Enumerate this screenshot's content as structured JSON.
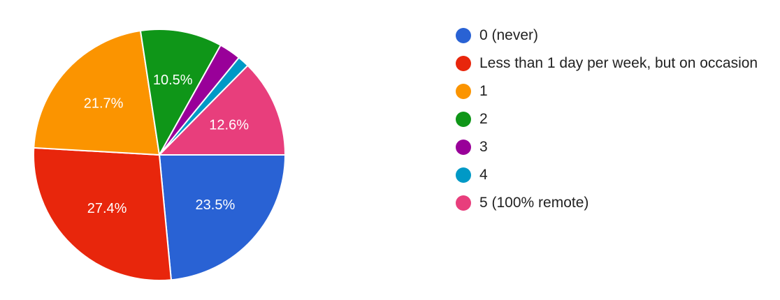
{
  "chart_data": {
    "type": "pie",
    "slices": [
      {
        "label": "0 (never)",
        "value": 23.5,
        "color": "#2962d4",
        "data_label": "23.5%"
      },
      {
        "label": "Less than 1 day per week, but on occasion",
        "value": 27.4,
        "color": "#e8260c",
        "data_label": "27.4%"
      },
      {
        "label": "1",
        "value": 21.7,
        "color": "#fb9400",
        "data_label": "21.7%"
      },
      {
        "label": "2",
        "value": 10.5,
        "color": "#0f9618",
        "data_label": "10.5%"
      },
      {
        "label": "3",
        "value": 2.8,
        "color": "#990099",
        "data_label": ""
      },
      {
        "label": "4",
        "value": 1.5,
        "color": "#0099c6",
        "data_label": ""
      },
      {
        "label": "5 (100% remote)",
        "value": 12.6,
        "color": "#e83e7c",
        "data_label": "12.6%"
      }
    ],
    "legend_position": "right"
  }
}
